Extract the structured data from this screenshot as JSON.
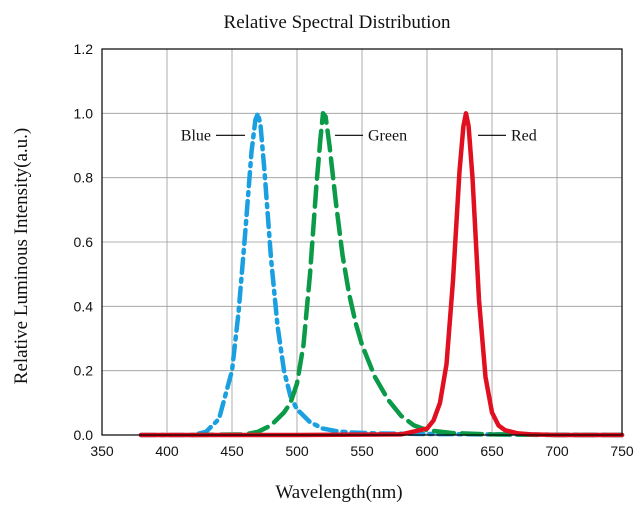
{
  "chart_data": {
    "type": "line",
    "title": "Relative Spectral Distribution",
    "xlabel": "Wavelength(nm)",
    "ylabel": "Relative Luminous Intensity(a.u.)",
    "xlim": [
      350,
      750
    ],
    "ylim": [
      0,
      1.2
    ],
    "xticks": [
      "350",
      "400",
      "450",
      "500",
      "550",
      "600",
      "650",
      "700",
      "750"
    ],
    "yticks": [
      "0.0",
      "0.2",
      "0.4",
      "0.6",
      "0.8",
      "1.0",
      "1.2"
    ],
    "grid": true,
    "legend": "inline labels near peaks",
    "series": [
      {
        "name": "Blue",
        "color": "#1aa0e0",
        "line_style": "dash-dot",
        "x": [
          380,
          420,
          430,
          440,
          450,
          455,
          460,
          465,
          468,
          470,
          472,
          475,
          480,
          485,
          490,
          495,
          500,
          510,
          520,
          530,
          540,
          560,
          600,
          650,
          700,
          750
        ],
        "y": [
          0,
          0,
          0.01,
          0.05,
          0.2,
          0.38,
          0.62,
          0.88,
          0.98,
          1.0,
          0.96,
          0.82,
          0.55,
          0.34,
          0.2,
          0.12,
          0.08,
          0.04,
          0.02,
          0.012,
          0.008,
          0.005,
          0.003,
          0.002,
          0.001,
          0
        ]
      },
      {
        "name": "Green",
        "color": "#0a9a48",
        "line_style": "long-dash",
        "x": [
          420,
          460,
          470,
          480,
          490,
          495,
          500,
          505,
          510,
          515,
          518,
          520,
          522,
          525,
          530,
          535,
          540,
          545,
          550,
          560,
          570,
          580,
          590,
          600,
          620,
          650,
          700,
          750
        ],
        "y": [
          0,
          0.002,
          0.01,
          0.03,
          0.07,
          0.1,
          0.16,
          0.28,
          0.5,
          0.78,
          0.92,
          1.0,
          0.99,
          0.9,
          0.72,
          0.56,
          0.44,
          0.35,
          0.28,
          0.18,
          0.11,
          0.06,
          0.03,
          0.015,
          0.006,
          0.002,
          0,
          0
        ]
      },
      {
        "name": "Red",
        "color": "#e01020",
        "line_style": "solid",
        "x": [
          380,
          500,
          580,
          600,
          605,
          610,
          615,
          620,
          625,
          628,
          630,
          632,
          635,
          640,
          645,
          650,
          655,
          660,
          670,
          680,
          700,
          750
        ],
        "y": [
          0,
          0,
          0.002,
          0.02,
          0.045,
          0.1,
          0.22,
          0.48,
          0.82,
          0.96,
          1.0,
          0.96,
          0.8,
          0.42,
          0.18,
          0.07,
          0.03,
          0.015,
          0.005,
          0.002,
          0,
          0
        ]
      }
    ]
  }
}
